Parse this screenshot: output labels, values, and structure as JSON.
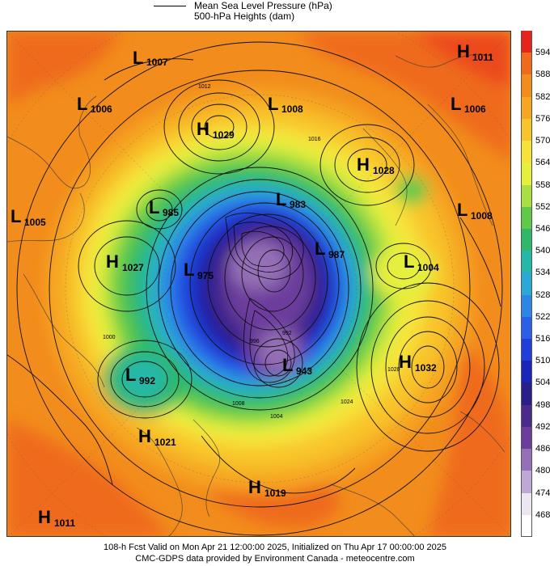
{
  "legend": {
    "line1": "Mean Sea Level Pressure (hPa)",
    "line2": "500-hPa Heights (dam)"
  },
  "colorbar": {
    "levels": [
      {
        "value": "594",
        "color": "#e8231c"
      },
      {
        "value": "588",
        "color": "#ef6a1a"
      },
      {
        "value": "582",
        "color": "#f28c1c"
      },
      {
        "value": "576",
        "color": "#f6a623"
      },
      {
        "value": "570",
        "color": "#f8c42c"
      },
      {
        "value": "564",
        "color": "#f7e23a"
      },
      {
        "value": "558",
        "color": "#e5ef3c"
      },
      {
        "value": "552",
        "color": "#a9df42"
      },
      {
        "value": "546",
        "color": "#5fca48"
      },
      {
        "value": "540",
        "color": "#2fb86a"
      },
      {
        "value": "534",
        "color": "#25b8a8"
      },
      {
        "value": "528",
        "color": "#2aa8d8"
      },
      {
        "value": "522",
        "color": "#2b86e6"
      },
      {
        "value": "516",
        "color": "#2a5fe8"
      },
      {
        "value": "510",
        "color": "#1f3fd8"
      },
      {
        "value": "504",
        "color": "#1b26b8"
      },
      {
        "value": "498",
        "color": "#2a1f8a"
      },
      {
        "value": "492",
        "color": "#4b2a8e"
      },
      {
        "value": "486",
        "color": "#6c3d9c"
      },
      {
        "value": "480",
        "color": "#9570b6"
      },
      {
        "value": "474",
        "color": "#c0a8d6"
      },
      {
        "value": "468",
        "color": "#ede6f2"
      }
    ],
    "bottom_color": "#ffffff"
  },
  "systems": [
    {
      "type": "L",
      "value": "1007"
    },
    {
      "type": "H",
      "value": "1011"
    },
    {
      "type": "L",
      "value": "1006"
    },
    {
      "type": "L",
      "value": "1008"
    },
    {
      "type": "L",
      "value": "1006"
    },
    {
      "type": "H",
      "value": "1029"
    },
    {
      "type": "H",
      "value": "1028"
    },
    {
      "type": "L",
      "value": "985"
    },
    {
      "type": "L",
      "value": "983"
    },
    {
      "type": "L",
      "value": "1005"
    },
    {
      "type": "L",
      "value": "1008"
    },
    {
      "type": "H",
      "value": "1027"
    },
    {
      "type": "L",
      "value": "975"
    },
    {
      "type": "L",
      "value": "987"
    },
    {
      "type": "L",
      "value": "1004"
    },
    {
      "type": "L",
      "value": "992"
    },
    {
      "type": "L",
      "value": "943"
    },
    {
      "type": "H",
      "value": "1032"
    },
    {
      "type": "H",
      "value": "1021"
    },
    {
      "type": "H",
      "value": "1019"
    },
    {
      "type": "H",
      "value": "1011"
    }
  ],
  "isobar_labels": [
    "1012",
    "1016",
    "1020",
    "1024",
    "1000",
    "1004",
    "1008",
    "996",
    "992"
  ],
  "footer": {
    "line1": "108-h Fcst Valid on Mon Apr 21 12:00:00 2025, Initialized on Thu Apr 17 00:00:00 2025",
    "line2": "CMC-GDPS data provided by Environment Canada - meteocentre.com"
  }
}
